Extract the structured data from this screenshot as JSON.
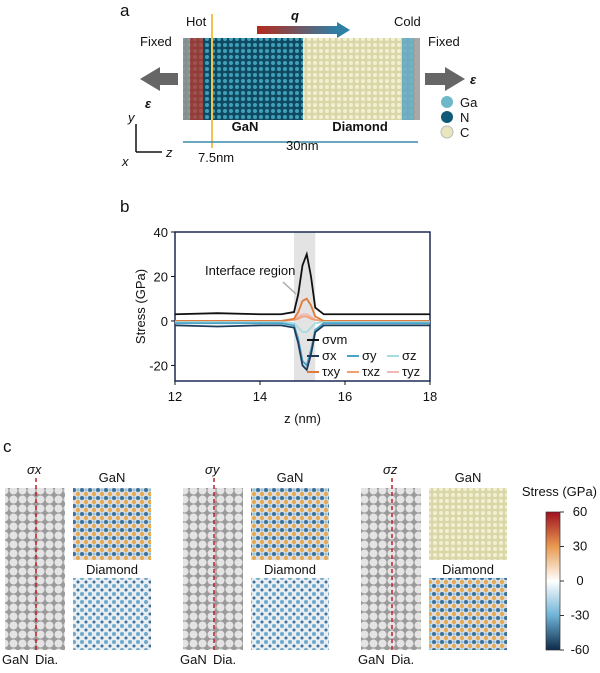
{
  "panel_a": {
    "label": "a",
    "hot": "Hot",
    "cold": "Cold",
    "fixed_left": "Fixed",
    "fixed_right": "Fixed",
    "q": "q",
    "strain_left": "ε",
    "strain_right": "ε",
    "legend": [
      "Ga",
      "N",
      "C"
    ],
    "gan": "GaN",
    "diamond": "Diamond",
    "hot_position": "7.5nm",
    "length": "30nm",
    "axis_y": "y",
    "axis_x": "x",
    "axis_z": "z"
  },
  "chart_data": {
    "type": "line",
    "label": "b",
    "xlabel": "z (nm)",
    "ylabel": "Stress (GPa)",
    "annotation": "Interface region",
    "xlim": [
      12,
      18
    ],
    "xticks": [
      12,
      14,
      16,
      18
    ],
    "ylim": [
      -27,
      40
    ],
    "yticks": [
      -20,
      0,
      20,
      40
    ],
    "highlight": [
      14.8,
      15.3
    ],
    "x": [
      12,
      13,
      14,
      14.5,
      14.8,
      14.9,
      15.0,
      15.1,
      15.2,
      15.3,
      15.5,
      16,
      17,
      18
    ],
    "series": [
      {
        "name": "σvm",
        "color": "#111111",
        "values": [
          3,
          3.5,
          3,
          3,
          4,
          12,
          25,
          30,
          20,
          6,
          3,
          3,
          3,
          3
        ]
      },
      {
        "name": "σx",
        "color": "#1f3b5c",
        "values": [
          -2,
          -2.5,
          -2,
          -2,
          -3,
          -10,
          -20,
          -22,
          -15,
          -5,
          -2,
          -2,
          -2,
          -2
        ]
      },
      {
        "name": "σy",
        "color": "#4aa3c8",
        "values": [
          -1,
          -1,
          -1,
          -1,
          -2,
          -8,
          -18,
          -20,
          -13,
          -4,
          -1,
          -1,
          -1,
          -1
        ]
      },
      {
        "name": "σz",
        "color": "#a8dbe0",
        "values": [
          -0.5,
          -0.5,
          -0.5,
          -0.5,
          -1,
          -3,
          -5,
          -5,
          -3,
          -1,
          -0.5,
          -0.5,
          -0.5,
          -0.5
        ]
      },
      {
        "name": "τxy",
        "color": "#e07a3a",
        "values": [
          0,
          0,
          0,
          0,
          1,
          4,
          9,
          10,
          7,
          2,
          0,
          0,
          0,
          0
        ]
      },
      {
        "name": "τxz",
        "color": "#f0a070",
        "values": [
          0,
          0,
          0,
          0,
          0.5,
          1,
          2,
          2,
          1,
          0.5,
          0,
          0,
          0,
          0
        ]
      },
      {
        "name": "τyz",
        "color": "#f2b8b8",
        "values": [
          0,
          0,
          0,
          0,
          0.5,
          2,
          3,
          3,
          2,
          0.5,
          0,
          0,
          0,
          0
        ]
      }
    ]
  },
  "panel_c": {
    "label": "c",
    "panels": [
      {
        "symbol": "σx",
        "top": "GaN",
        "bottom": "Diamond",
        "left": "GaN",
        "right": "Dia."
      },
      {
        "symbol": "σy",
        "top": "GaN",
        "bottom": "Diamond",
        "left": "GaN",
        "right": "Dia."
      },
      {
        "symbol": "σz",
        "top": "GaN",
        "bottom": "Diamond",
        "left": "GaN",
        "right": "Dia."
      }
    ],
    "colorbar": {
      "title": "Stress (GPa)",
      "lim": [
        -60,
        60
      ],
      "ticks": [
        60,
        30,
        0,
        -30,
        -60
      ]
    }
  }
}
